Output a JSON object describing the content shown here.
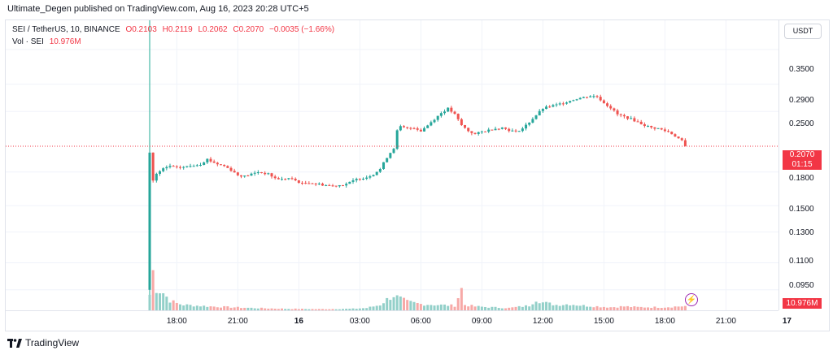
{
  "header": {
    "published_text": "Ultimate_Degen published on TradingView.com, Aug 16, 2023 20:28 UTC+5"
  },
  "legend": {
    "symbol": "SEI / TetherUS, 10, BINANCE",
    "o": "O0.2103",
    "h": "H0.2119",
    "l": "L0.2062",
    "c": "C0.2070",
    "change": "−0.0035 (−1.66%)",
    "vol_label": "Vol · SEI",
    "vol_value": "10.976M"
  },
  "currency_button": "USDT",
  "price_axis": {
    "ticks": [
      "0.3500",
      "0.2900",
      "0.2500",
      "0.1800",
      "0.1500",
      "0.1300",
      "0.1100",
      "0.0950"
    ],
    "last_price": "0.2070",
    "countdown": "01:15",
    "volume_badge": "10.976M"
  },
  "time_axis": {
    "labels": [
      "18:00",
      "21:00",
      "16",
      "03:00",
      "06:00",
      "09:00",
      "12:00",
      "15:00",
      "18:00",
      "21:00",
      "17"
    ]
  },
  "footer": {
    "brand": "TradingView"
  },
  "colors": {
    "up": "#26a69a",
    "down": "#ef5350",
    "vol_up": "#93d0c9",
    "vol_down": "#f7a9a7"
  },
  "chart_data": {
    "type": "candlestick",
    "title": "SEI / TetherUS, 10, BINANCE",
    "y_scale": "log",
    "ylim": [
      0.085,
      0.41
    ],
    "y_ticks": [
      0.35,
      0.29,
      0.25,
      0.18,
      0.15,
      0.13,
      0.11,
      0.095
    ],
    "x_start": "Aug 15 16:40",
    "interval_minutes": 10,
    "bars_per_hour": 6,
    "x_ticks": [
      {
        "label": "18:00",
        "bar": 8
      },
      {
        "label": "21:00",
        "bar": 26
      },
      {
        "label": "16",
        "bar": 44
      },
      {
        "label": "03:00",
        "bar": 62
      },
      {
        "label": "06:00",
        "bar": 80
      },
      {
        "label": "09:00",
        "bar": 98
      },
      {
        "label": "12:00",
        "bar": 116
      },
      {
        "label": "15:00",
        "bar": 134
      },
      {
        "label": "18:00",
        "bar": 152
      },
      {
        "label": "21:00",
        "bar": 170
      },
      {
        "label": "17",
        "bar": 188
      }
    ],
    "close_path": [
      [
        0,
        0.2
      ],
      [
        1,
        0.172
      ],
      [
        2,
        0.178
      ],
      [
        4,
        0.183
      ],
      [
        6,
        0.186
      ],
      [
        8,
        0.184
      ],
      [
        10,
        0.185
      ],
      [
        12,
        0.186
      ],
      [
        15,
        0.188
      ],
      [
        17,
        0.193
      ],
      [
        18,
        0.191
      ],
      [
        20,
        0.188
      ],
      [
        22,
        0.186
      ],
      [
        24,
        0.182
      ],
      [
        26,
        0.177
      ],
      [
        28,
        0.176
      ],
      [
        30,
        0.178
      ],
      [
        32,
        0.18
      ],
      [
        35,
        0.178
      ],
      [
        37,
        0.174
      ],
      [
        39,
        0.173
      ],
      [
        41,
        0.174
      ],
      [
        43,
        0.172
      ],
      [
        45,
        0.169
      ],
      [
        47,
        0.17
      ],
      [
        49,
        0.169
      ],
      [
        51,
        0.168
      ],
      [
        54,
        0.167
      ],
      [
        57,
        0.168
      ],
      [
        59,
        0.17
      ],
      [
        61,
        0.173
      ],
      [
        64,
        0.175
      ],
      [
        66,
        0.178
      ],
      [
        68,
        0.183
      ],
      [
        70,
        0.195
      ],
      [
        72,
        0.205
      ],
      [
        73,
        0.225
      ],
      [
        74,
        0.23
      ],
      [
        76,
        0.228
      ],
      [
        78,
        0.229
      ],
      [
        80,
        0.225
      ],
      [
        82,
        0.232
      ],
      [
        84,
        0.24
      ],
      [
        86,
        0.248
      ],
      [
        88,
        0.254
      ],
      [
        90,
        0.246
      ],
      [
        92,
        0.232
      ],
      [
        94,
        0.225
      ],
      [
        96,
        0.221
      ],
      [
        98,
        0.224
      ],
      [
        100,
        0.226
      ],
      [
        102,
        0.228
      ],
      [
        104,
        0.229
      ],
      [
        106,
        0.226
      ],
      [
        108,
        0.224
      ],
      [
        110,
        0.228
      ],
      [
        112,
        0.236
      ],
      [
        114,
        0.245
      ],
      [
        116,
        0.254
      ],
      [
        118,
        0.257
      ],
      [
        120,
        0.259
      ],
      [
        122,
        0.262
      ],
      [
        124,
        0.265
      ],
      [
        126,
        0.268
      ],
      [
        128,
        0.27
      ],
      [
        130,
        0.272
      ],
      [
        132,
        0.271
      ],
      [
        134,
        0.262
      ],
      [
        136,
        0.255
      ],
      [
        138,
        0.246
      ],
      [
        140,
        0.243
      ],
      [
        142,
        0.24
      ],
      [
        144,
        0.236
      ],
      [
        146,
        0.232
      ],
      [
        148,
        0.229
      ],
      [
        150,
        0.228
      ],
      [
        152,
        0.225
      ],
      [
        153,
        0.224
      ],
      [
        155,
        0.219
      ],
      [
        157,
        0.213
      ],
      [
        158,
        0.207
      ]
    ],
    "volume_profile": [
      [
        0,
        40
      ],
      [
        1,
        100
      ],
      [
        2,
        55
      ],
      [
        4,
        45
      ],
      [
        6,
        25
      ],
      [
        8,
        18
      ],
      [
        10,
        14
      ],
      [
        14,
        12
      ],
      [
        18,
        10
      ],
      [
        24,
        8
      ],
      [
        30,
        6
      ],
      [
        40,
        4
      ],
      [
        50,
        3
      ],
      [
        60,
        4
      ],
      [
        64,
        6
      ],
      [
        68,
        14
      ],
      [
        70,
        28
      ],
      [
        72,
        38
      ],
      [
        74,
        30
      ],
      [
        76,
        22
      ],
      [
        80,
        16
      ],
      [
        85,
        14
      ],
      [
        90,
        12
      ],
      [
        92,
        55
      ],
      [
        93,
        14
      ],
      [
        96,
        10
      ],
      [
        100,
        8
      ],
      [
        106,
        6
      ],
      [
        112,
        12
      ],
      [
        114,
        28
      ],
      [
        116,
        20
      ],
      [
        120,
        14
      ],
      [
        124,
        16
      ],
      [
        128,
        12
      ],
      [
        132,
        10
      ],
      [
        136,
        8
      ],
      [
        140,
        10
      ],
      [
        144,
        8
      ],
      [
        148,
        8
      ],
      [
        152,
        8
      ],
      [
        156,
        10
      ],
      [
        158,
        11
      ]
    ]
  }
}
